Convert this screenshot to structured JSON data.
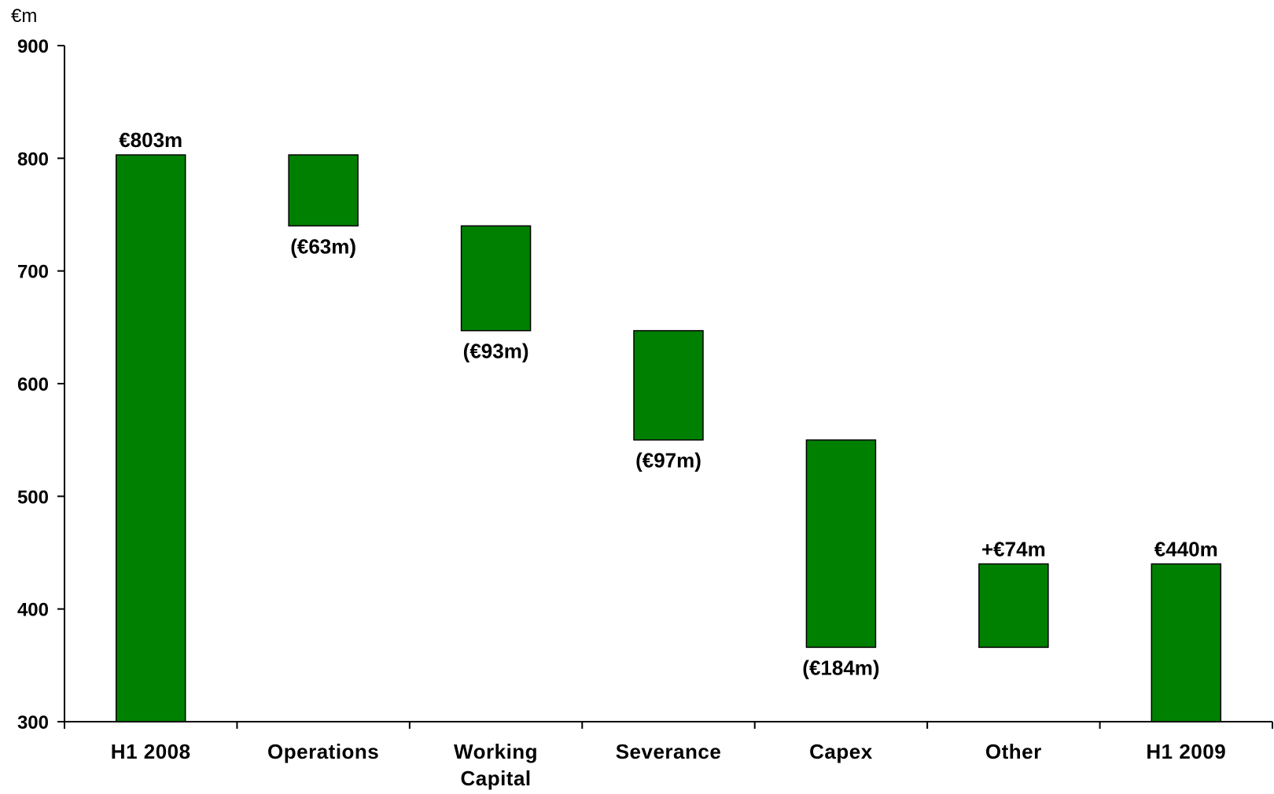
{
  "chart_data": {
    "type": "bar",
    "subtype": "waterfall",
    "unit_label": "€m",
    "ylim": [
      300,
      900
    ],
    "y_ticks": [
      300,
      400,
      500,
      600,
      700,
      800,
      900
    ],
    "grid": false,
    "legend": "none",
    "bar_color": "#008000",
    "bar_border_color": "#000000",
    "categories": [
      [
        "H1 2008"
      ],
      [
        "Operations"
      ],
      [
        "Working",
        "Capital"
      ],
      [
        "Severance"
      ],
      [
        "Capex"
      ],
      [
        "Other"
      ],
      [
        "H1 2009"
      ]
    ],
    "bars": [
      {
        "kind": "total",
        "start": 300,
        "end": 803,
        "label": "€803m",
        "label_position": "top"
      },
      {
        "kind": "delta",
        "start": 803,
        "end": 740,
        "label": "(€63m)",
        "label_position": "bottom"
      },
      {
        "kind": "delta",
        "start": 740,
        "end": 647,
        "label": "(€93m)",
        "label_position": "bottom"
      },
      {
        "kind": "delta",
        "start": 647,
        "end": 550,
        "label": "(€97m)",
        "label_position": "bottom"
      },
      {
        "kind": "delta",
        "start": 550,
        "end": 366,
        "label": "(€184m)",
        "label_position": "bottom"
      },
      {
        "kind": "delta",
        "start": 366,
        "end": 440,
        "label": "+€74m",
        "label_position": "top"
      },
      {
        "kind": "total",
        "start": 300,
        "end": 440,
        "label": "€440m",
        "label_position": "top"
      }
    ]
  }
}
